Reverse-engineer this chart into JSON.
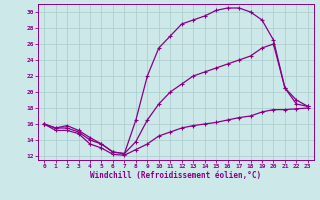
{
  "xlabel": "Windchill (Refroidissement éolien,°C)",
  "ylabel": "",
  "xlim": [
    -0.5,
    23.5
  ],
  "ylim": [
    11.5,
    31
  ],
  "xticks": [
    0,
    1,
    2,
    3,
    4,
    5,
    6,
    7,
    8,
    9,
    10,
    11,
    12,
    13,
    14,
    15,
    16,
    17,
    18,
    19,
    20,
    21,
    22,
    23
  ],
  "yticks": [
    12,
    14,
    16,
    18,
    20,
    22,
    24,
    26,
    28,
    30
  ],
  "bg_color": "#cce8e8",
  "grid_color": "#aacccc",
  "line_color": "#880088",
  "line1_x": [
    0,
    1,
    2,
    3,
    4,
    5,
    6,
    7,
    8,
    9,
    10,
    11,
    12,
    13,
    14,
    15,
    16,
    17,
    18,
    19,
    20,
    21,
    22,
    23
  ],
  "line1_y": [
    16,
    15.2,
    15.2,
    14.8,
    13.5,
    13.0,
    12.2,
    12.1,
    12.8,
    13.5,
    14.5,
    15.0,
    15.5,
    15.8,
    16.0,
    16.2,
    16.5,
    16.8,
    17.0,
    17.5,
    17.8,
    17.8,
    17.9,
    18.0
  ],
  "line2_x": [
    0,
    1,
    2,
    3,
    4,
    5,
    6,
    7,
    8,
    9,
    10,
    11,
    12,
    13,
    14,
    15,
    16,
    17,
    18,
    19,
    20,
    21,
    22,
    23
  ],
  "line2_y": [
    16,
    15.5,
    15.8,
    15.2,
    14.3,
    13.5,
    12.5,
    12.3,
    16.5,
    22.0,
    25.5,
    27.0,
    28.5,
    29.0,
    29.5,
    30.2,
    30.5,
    30.5,
    30.0,
    29.0,
    26.5,
    20.5,
    19.0,
    18.2
  ],
  "line3_x": [
    0,
    1,
    2,
    3,
    4,
    5,
    6,
    7,
    8,
    9,
    10,
    11,
    12,
    13,
    14,
    15,
    16,
    17,
    18,
    19,
    20,
    21,
    22,
    23
  ],
  "line3_y": [
    16,
    15.5,
    15.5,
    15.0,
    14.0,
    13.5,
    12.5,
    12.3,
    13.8,
    16.5,
    18.5,
    20.0,
    21.0,
    22.0,
    22.5,
    23.0,
    23.5,
    24.0,
    24.5,
    25.5,
    26.0,
    20.5,
    18.5,
    18.2
  ]
}
